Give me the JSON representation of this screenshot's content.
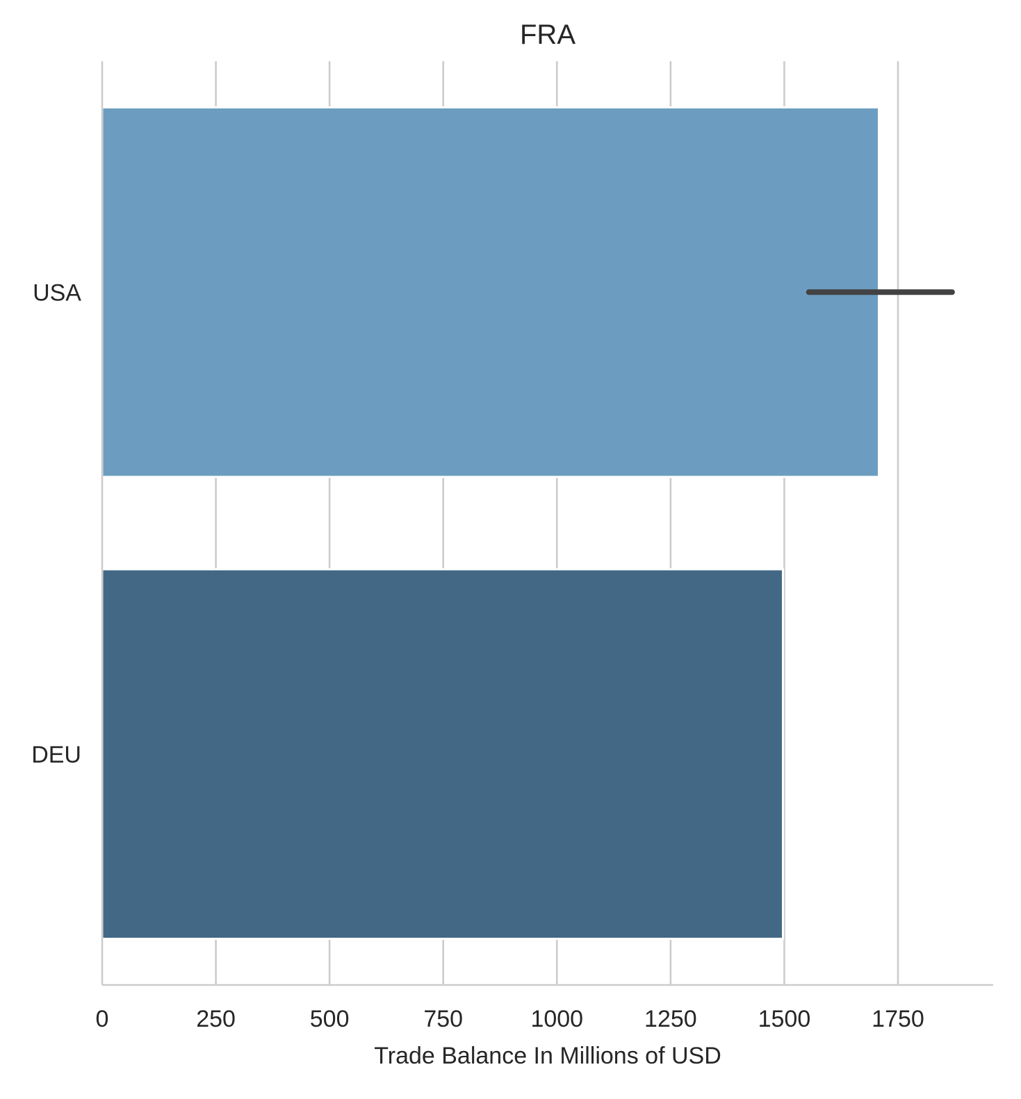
{
  "chart_data": {
    "type": "bar",
    "orientation": "horizontal",
    "title": "FRA",
    "xlabel": "Trade Balance In Millions of USD",
    "ylabel": "",
    "xlim": [
      0,
      1960
    ],
    "xticks": [
      0,
      250,
      500,
      750,
      1000,
      1250,
      1500,
      1750
    ],
    "xtick_labels": [
      "0",
      "250",
      "500",
      "750",
      "1000",
      "1250",
      "1500",
      "1750"
    ],
    "grid": "vertical",
    "categories": [
      "USA",
      "DEU"
    ],
    "values": [
      1708,
      1497
    ],
    "error_bars": [
      [
        1554,
        1869
      ],
      null
    ],
    "colors": [
      "#6c9dc0",
      "#426886"
    ],
    "error_color": "#424242",
    "grid_color": "#cccccc",
    "axis_color": "#cccccc"
  }
}
